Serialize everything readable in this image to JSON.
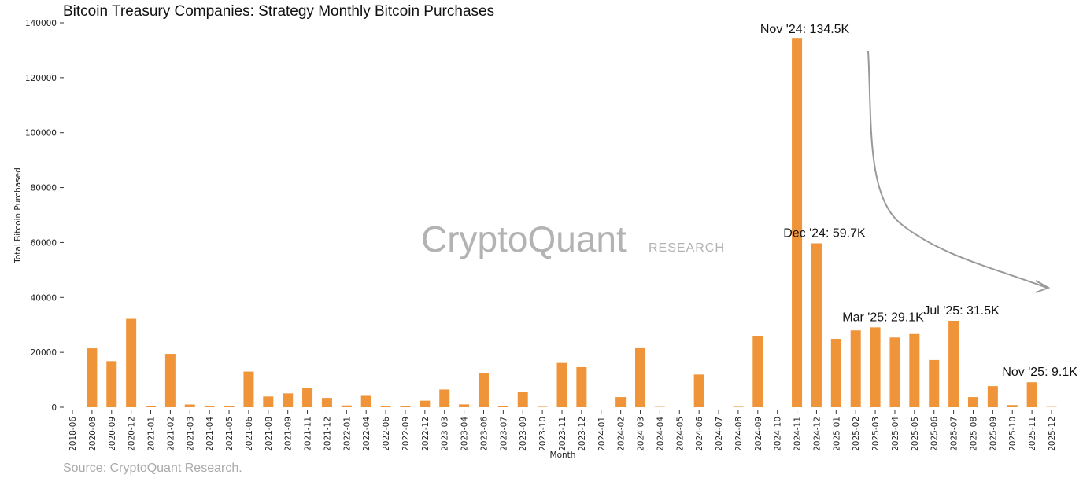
{
  "chart_data": {
    "type": "bar",
    "title": "Bitcoin Treasury Companies: Strategy Monthly Bitcoin Purchases",
    "xlabel": "Month",
    "ylabel": "Total Bitcoin Purchased",
    "ylim": [
      0,
      140000
    ],
    "yticks": [
      0,
      20000,
      40000,
      60000,
      80000,
      100000,
      120000,
      140000
    ],
    "grid": false,
    "bar_color": "#f0943a",
    "categories": [
      "2018-06",
      "2020-08",
      "2020-09",
      "2020-12",
      "2021-01",
      "2021-02",
      "2021-03",
      "2021-04",
      "2021-05",
      "2021-06",
      "2021-08",
      "2021-09",
      "2021-11",
      "2021-12",
      "2022-01",
      "2022-04",
      "2022-06",
      "2022-09",
      "2022-12",
      "2023-03",
      "2023-04",
      "2023-06",
      "2023-07",
      "2023-09",
      "2023-10",
      "2023-11",
      "2023-12",
      "2024-01",
      "2024-02",
      "2024-03",
      "2024-04",
      "2024-05",
      "2024-06",
      "2024-07",
      "2024-08",
      "2024-09",
      "2024-10",
      "2024-11",
      "2024-12",
      "2025-01",
      "2025-02",
      "2025-03",
      "2025-04",
      "2025-05",
      "2025-06",
      "2025-07",
      "2025-08",
      "2025-09",
      "2025-10",
      "2025-11",
      "2025-12"
    ],
    "values": [
      0,
      21454,
      16796,
      32200,
      314,
      19452,
      1000,
      271,
      500,
      13005,
      3907,
      5050,
      7002,
      3400,
      660,
      4167,
      480,
      301,
      2395,
      6455,
      1045,
      12333,
      467,
      5445,
      155,
      16130,
      14620,
      0,
      3700,
      21500,
      122,
      0,
      11931,
      0,
      169,
      25889,
      0,
      134500,
      59700,
      24900,
      28000,
      29100,
      25400,
      26700,
      17200,
      31500,
      3700,
      7700,
      800,
      9100,
      100
    ],
    "annotations": [
      {
        "category": "2024-11",
        "text": "Nov '24: 134.5K"
      },
      {
        "category": "2024-12",
        "text": "Dec '24: 59.7K"
      },
      {
        "category": "2025-03",
        "text": "Mar '25: 29.1K"
      },
      {
        "category": "2025-07",
        "text": "Jul '25: 31.5K"
      },
      {
        "category": "2025-11",
        "text": "Nov '25: 9.1K"
      }
    ]
  },
  "watermark": {
    "brand": "CryptoQuant",
    "sub": "RESEARCH"
  },
  "source": "Source: CryptoQuant Research.",
  "colors": {
    "arrow": "#999999",
    "text": "#111111"
  }
}
